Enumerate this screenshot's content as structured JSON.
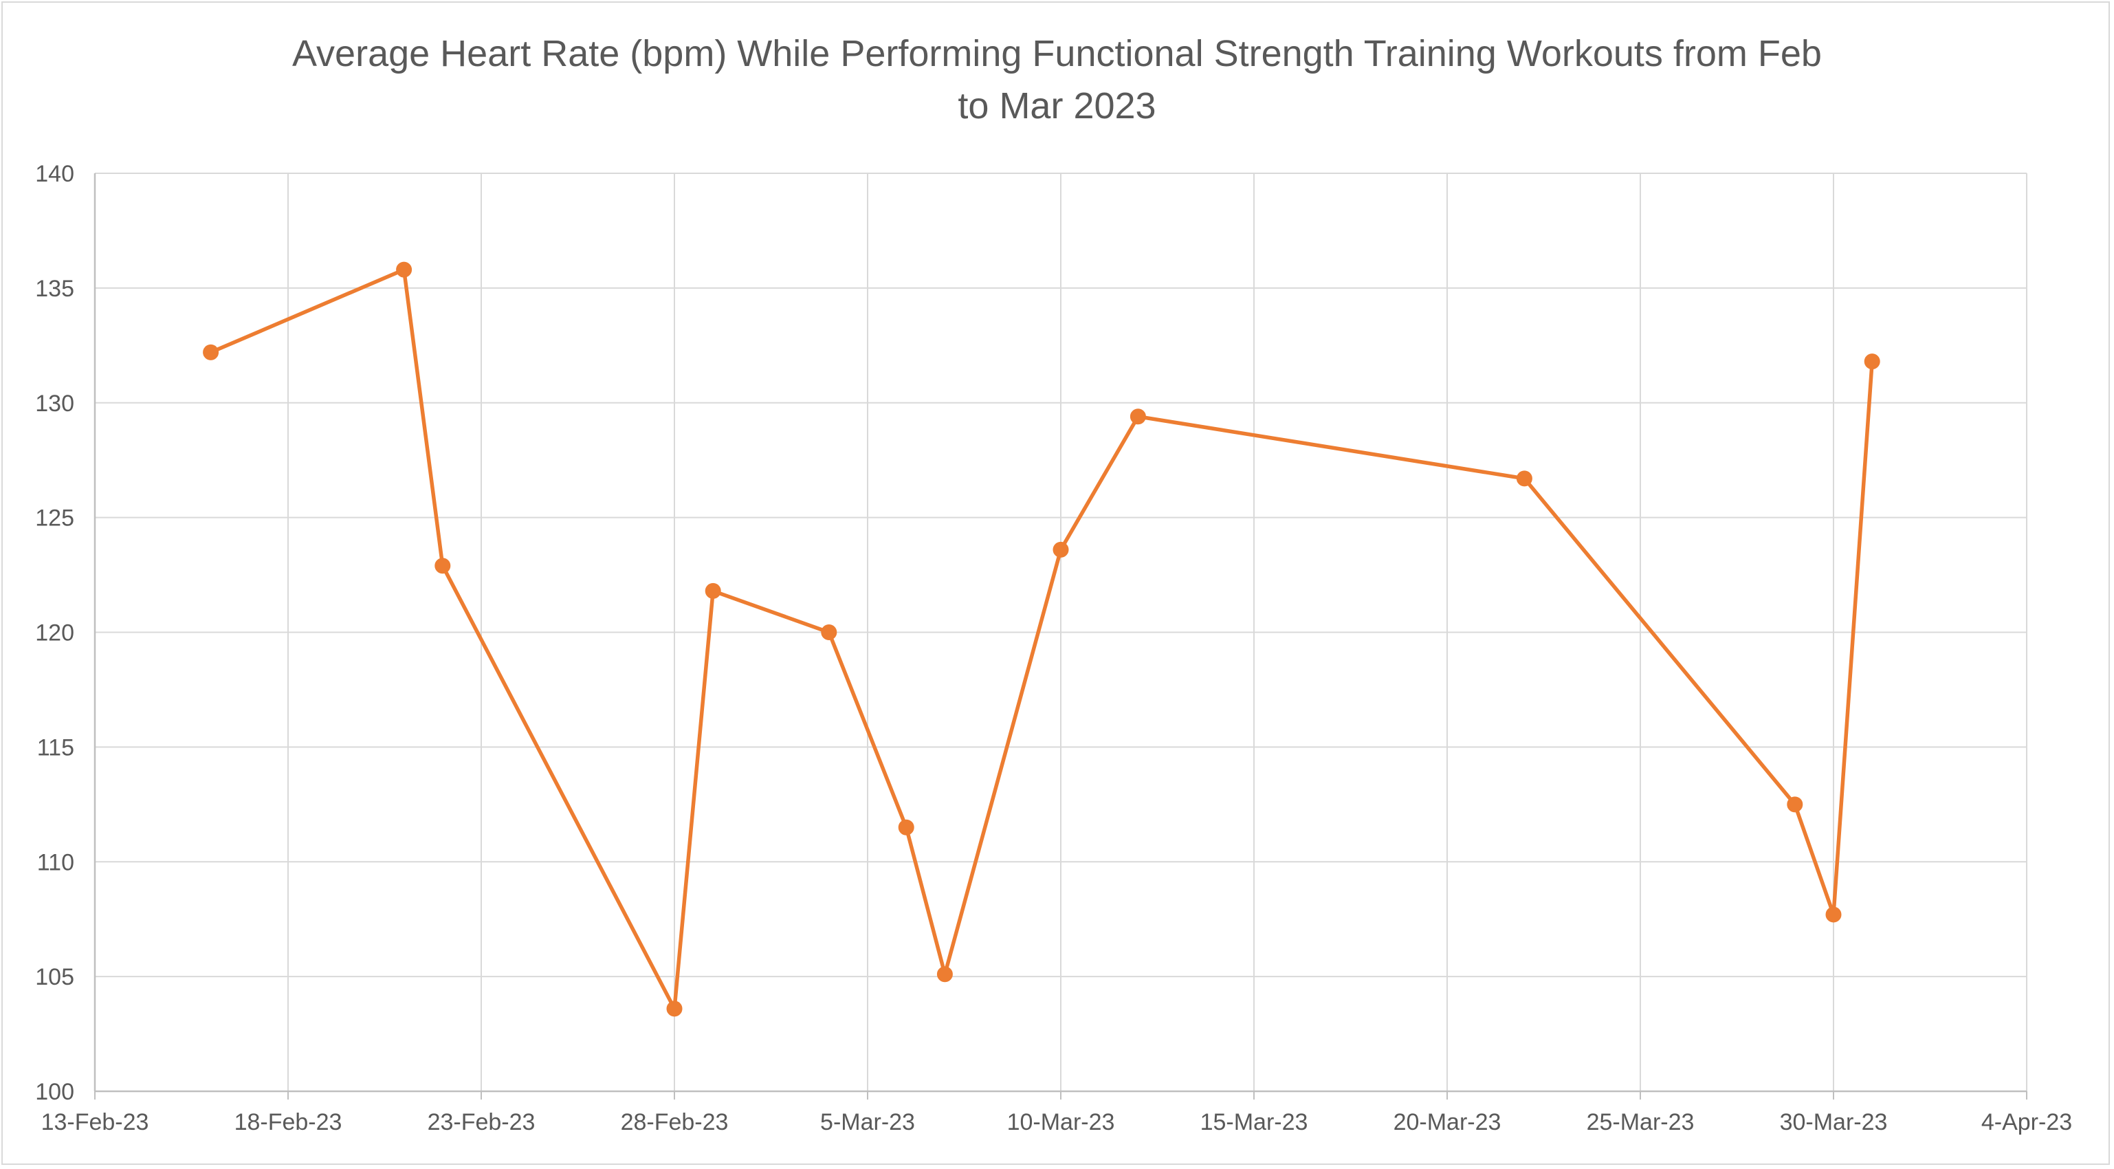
{
  "chart_data": {
    "type": "line",
    "title_lines": [
      "Average Heart Rate (bpm) While Performing Functional Strength Training Workouts from Feb",
      "to Mar 2023"
    ],
    "xlabel": "",
    "ylabel": "",
    "x_axis_type": "date",
    "xlim": [
      "2023-02-13",
      "2023-04-04"
    ],
    "ylim": [
      100,
      140
    ],
    "x_ticks": [
      {
        "date": "2023-02-13",
        "label": "13-Feb-23"
      },
      {
        "date": "2023-02-18",
        "label": "18-Feb-23"
      },
      {
        "date": "2023-02-23",
        "label": "23-Feb-23"
      },
      {
        "date": "2023-02-28",
        "label": "28-Feb-23"
      },
      {
        "date": "2023-03-05",
        "label": "5-Mar-23"
      },
      {
        "date": "2023-03-10",
        "label": "10-Mar-23"
      },
      {
        "date": "2023-03-15",
        "label": "15-Mar-23"
      },
      {
        "date": "2023-03-20",
        "label": "20-Mar-23"
      },
      {
        "date": "2023-03-25",
        "label": "25-Mar-23"
      },
      {
        "date": "2023-03-30",
        "label": "30-Mar-23"
      },
      {
        "date": "2023-04-04",
        "label": "4-Apr-23"
      }
    ],
    "y_ticks": [
      100,
      105,
      110,
      115,
      120,
      125,
      130,
      135,
      140
    ],
    "grid": true,
    "color": "#ed7d31",
    "series": [
      {
        "points": [
          {
            "x": "2023-02-16",
            "y": 132.2
          },
          {
            "x": "2023-02-21",
            "y": 135.8
          },
          {
            "x": "2023-02-22",
            "y": 122.9
          },
          {
            "x": "2023-02-28",
            "y": 103.6
          },
          {
            "x": "2023-03-01",
            "y": 121.8
          },
          {
            "x": "2023-03-04",
            "y": 120.0
          },
          {
            "x": "2023-03-06",
            "y": 111.5
          },
          {
            "x": "2023-03-07",
            "y": 105.1
          },
          {
            "x": "2023-03-10",
            "y": 123.6
          },
          {
            "x": "2023-03-12",
            "y": 129.4
          },
          {
            "x": "2023-03-22",
            "y": 126.7
          },
          {
            "x": "2023-03-29",
            "y": 112.5
          },
          {
            "x": "2023-03-30",
            "y": 107.7
          },
          {
            "x": "2023-03-31",
            "y": 131.8
          }
        ]
      }
    ]
  }
}
